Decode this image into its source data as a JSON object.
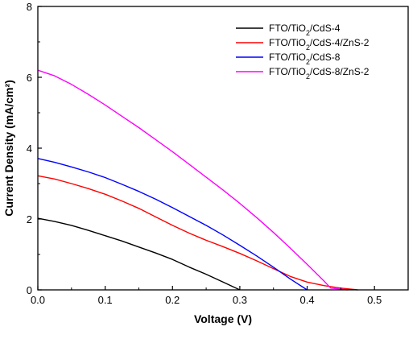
{
  "chart_data": {
    "type": "line",
    "title": "",
    "xlabel": "Voltage (V)",
    "ylabel": "Current Density (mA/cm²)",
    "xlim": [
      0.0,
      0.55
    ],
    "ylim": [
      0,
      8
    ],
    "xticks": [
      0.0,
      0.1,
      0.2,
      0.3,
      0.4,
      0.5
    ],
    "yticks": [
      0,
      2,
      4,
      6,
      8
    ],
    "xtick_labels": [
      "0.0",
      "0.1",
      "0.2",
      "0.3",
      "0.4",
      "0.5"
    ],
    "ytick_labels": [
      "0",
      "2",
      "4",
      "6",
      "8"
    ],
    "grid": false,
    "legend_position": "top-right",
    "series": [
      {
        "name": "FTO/TiO₂/CdS-4",
        "color": "#000000",
        "x": [
          0.0,
          0.025,
          0.05,
          0.075,
          0.1,
          0.125,
          0.15,
          0.175,
          0.2,
          0.225,
          0.25,
          0.275,
          0.3
        ],
        "y": [
          2.02,
          1.93,
          1.82,
          1.68,
          1.53,
          1.38,
          1.21,
          1.04,
          0.86,
          0.64,
          0.44,
          0.22,
          0.0
        ]
      },
      {
        "name": "FTO/TiO₂/CdS-4/ZnS-2",
        "color": "#ff0000",
        "x": [
          0.0,
          0.025,
          0.05,
          0.075,
          0.1,
          0.125,
          0.15,
          0.175,
          0.2,
          0.225,
          0.25,
          0.275,
          0.3,
          0.325,
          0.35,
          0.375,
          0.4,
          0.425,
          0.45,
          0.475
        ],
        "y": [
          3.22,
          3.13,
          3.0,
          2.86,
          2.7,
          2.51,
          2.3,
          2.06,
          1.82,
          1.6,
          1.4,
          1.22,
          1.03,
          0.82,
          0.6,
          0.38,
          0.22,
          0.12,
          0.05,
          0.0
        ]
      },
      {
        "name": "FTO/TiO₂/CdS-8",
        "color": "#0000ff",
        "x": [
          0.0,
          0.025,
          0.05,
          0.075,
          0.1,
          0.125,
          0.15,
          0.175,
          0.2,
          0.225,
          0.25,
          0.275,
          0.3,
          0.325,
          0.35,
          0.375,
          0.4
        ],
        "y": [
          3.71,
          3.6,
          3.47,
          3.33,
          3.17,
          2.98,
          2.78,
          2.56,
          2.32,
          2.07,
          1.82,
          1.55,
          1.26,
          0.96,
          0.64,
          0.31,
          0.0
        ]
      },
      {
        "name": "FTO/TiO₂/CdS-8/ZnS-2",
        "color": "#ff00ff",
        "x": [
          0.0,
          0.025,
          0.05,
          0.075,
          0.1,
          0.125,
          0.15,
          0.175,
          0.2,
          0.225,
          0.25,
          0.275,
          0.3,
          0.325,
          0.35,
          0.375,
          0.4,
          0.425,
          0.435,
          0.45,
          0.46
        ],
        "y": [
          6.2,
          6.04,
          5.8,
          5.52,
          5.22,
          4.9,
          4.58,
          4.24,
          3.9,
          3.54,
          3.18,
          2.82,
          2.44,
          2.04,
          1.62,
          1.18,
          0.72,
          0.25,
          0.05,
          0.02,
          0.0
        ]
      }
    ]
  }
}
